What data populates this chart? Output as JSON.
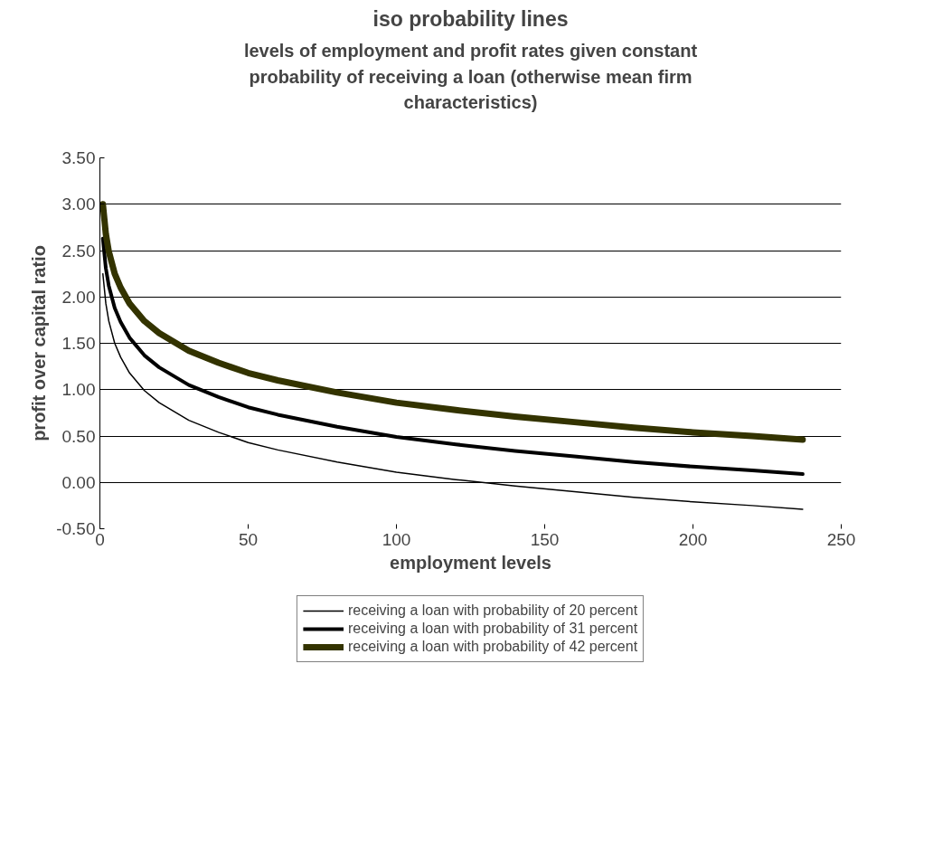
{
  "chart_data": {
    "type": "line",
    "title": "iso probability lines",
    "subtitle": "levels of employment and profit rates given constant probability of receiving a loan (otherwise mean firm characteristics)",
    "xlabel": "employment levels",
    "ylabel": "profit over capital ratio",
    "x": [
      1,
      2,
      3,
      5,
      7,
      10,
      15,
      20,
      30,
      40,
      50,
      60,
      80,
      100,
      120,
      140,
      160,
      180,
      200,
      220,
      237
    ],
    "series": [
      {
        "name": "receiving a loan with probability of 20 percent",
        "color": "#000000",
        "values": [
          2.25,
          1.93,
          1.74,
          1.5,
          1.35,
          1.18,
          0.99,
          0.86,
          0.67,
          0.54,
          0.43,
          0.35,
          0.22,
          0.11,
          0.03,
          -0.04,
          -0.1,
          -0.16,
          -0.21,
          -0.25,
          -0.29
        ]
      },
      {
        "name": "receiving a loan with probability of 31 percent",
        "color": "#000000",
        "values": [
          2.63,
          2.31,
          2.12,
          1.88,
          1.73,
          1.56,
          1.37,
          1.24,
          1.05,
          0.92,
          0.81,
          0.73,
          0.6,
          0.49,
          0.41,
          0.34,
          0.28,
          0.22,
          0.17,
          0.13,
          0.09
        ]
      },
      {
        "name": "receiving a loan with probability of 42 percent",
        "color": "#333300",
        "values": [
          3.0,
          2.68,
          2.49,
          2.25,
          2.1,
          1.93,
          1.74,
          1.61,
          1.42,
          1.29,
          1.18,
          1.1,
          0.97,
          0.86,
          0.78,
          0.71,
          0.65,
          0.59,
          0.54,
          0.5,
          0.46
        ]
      }
    ],
    "xlim": [
      0,
      250
    ],
    "xticks": [
      0,
      50,
      100,
      150,
      200,
      250
    ],
    "ylim": [
      -0.5,
      3.5
    ],
    "yticks": [
      {
        "value": -0.5,
        "label": "-0.50"
      },
      {
        "value": 0,
        "label": "0.00"
      },
      {
        "value": 0.5,
        "label": "0.50"
      },
      {
        "value": 1,
        "label": "1.00"
      },
      {
        "value": 1.5,
        "label": "1.50"
      },
      {
        "value": 2,
        "label": "2.00"
      },
      {
        "value": 2.5,
        "label": "2.50"
      },
      {
        "value": 3,
        "label": "3.00"
      },
      {
        "value": 3.5,
        "label": "3.50"
      }
    ],
    "grid": "y",
    "legend": "bottom",
    "marker": "none",
    "line_style": "solid"
  }
}
